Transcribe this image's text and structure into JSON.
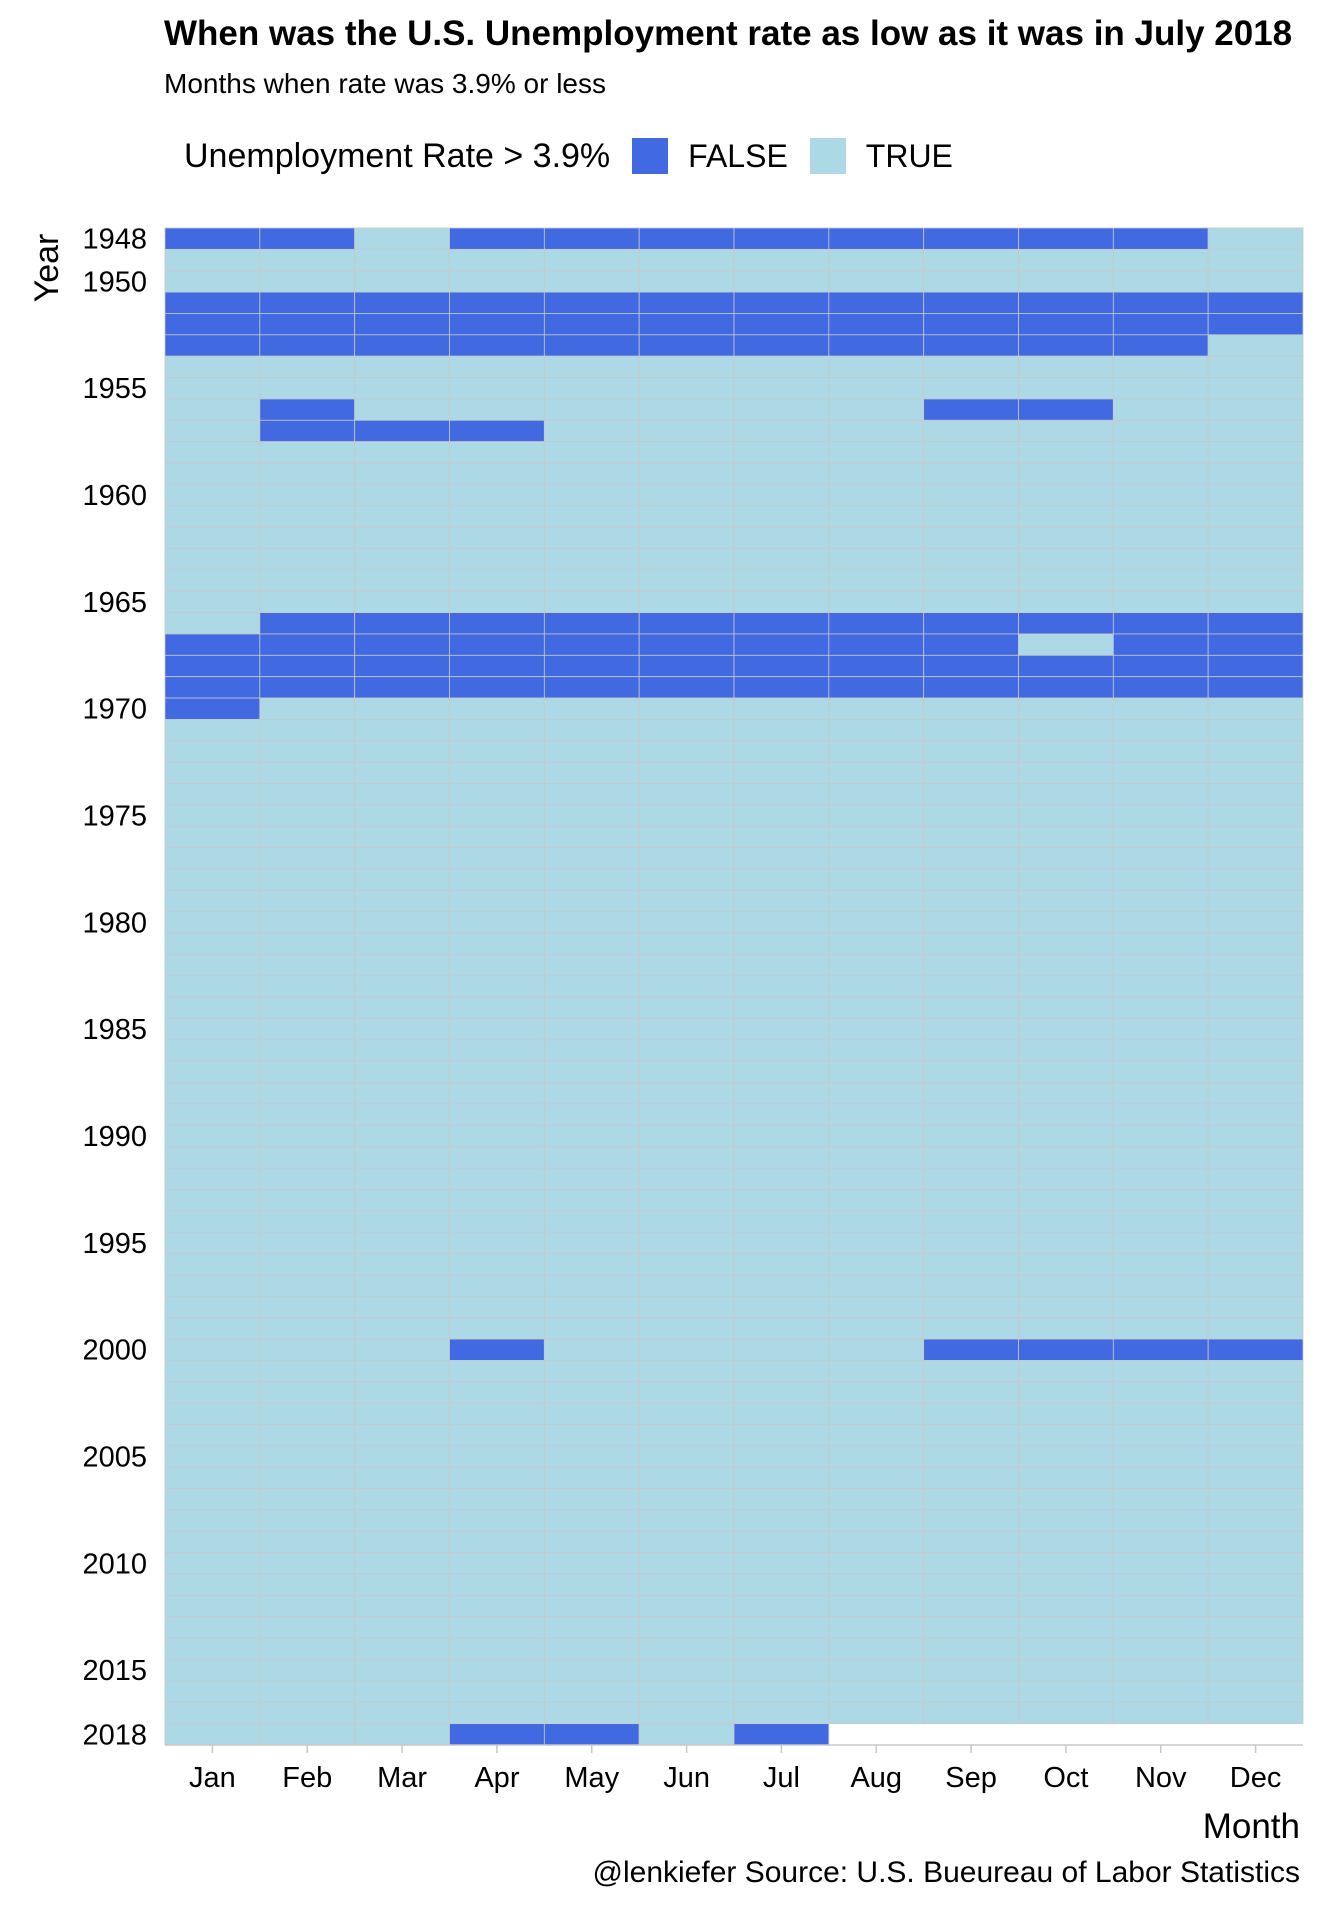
{
  "title": "When was the U.S. Unemployment rate as low as it was in July 2018",
  "subtitle": "Months when rate was 3.9% or less",
  "caption": "@lenkiefer Source: U.S. Bueureau of Labor Statistics",
  "legend": {
    "title": "Unemployment Rate > 3.9%",
    "items": [
      {
        "label": "FALSE",
        "color": "#4169E1"
      },
      {
        "label": "TRUE",
        "color": "#ADD8E6"
      }
    ]
  },
  "chart_data": {
    "type": "heatmap",
    "xlabel": "Month",
    "ylabel": "Year",
    "x_categories": [
      "Jan",
      "Feb",
      "Mar",
      "Apr",
      "May",
      "Jun",
      "Jul",
      "Aug",
      "Sep",
      "Oct",
      "Nov",
      "Dec"
    ],
    "y_range": [
      1948,
      2018
    ],
    "y_ticks": [
      1948,
      1950,
      1955,
      1960,
      1965,
      1970,
      1975,
      1980,
      1985,
      1990,
      1995,
      2000,
      2005,
      2010,
      2015,
      2018
    ],
    "last_month_2018": 7,
    "default_value": "TRUE",
    "false_cells": {
      "1948": [
        "Jan",
        "Feb",
        "Apr",
        "May",
        "Jun",
        "Jul",
        "Aug",
        "Sep",
        "Oct",
        "Nov"
      ],
      "1951": [
        "Jan",
        "Feb",
        "Mar",
        "Apr",
        "May",
        "Jun",
        "Jul",
        "Aug",
        "Sep",
        "Oct",
        "Nov",
        "Dec"
      ],
      "1952": [
        "Jan",
        "Feb",
        "Mar",
        "Apr",
        "May",
        "Jun",
        "Jul",
        "Aug",
        "Sep",
        "Oct",
        "Nov",
        "Dec"
      ],
      "1953": [
        "Jan",
        "Feb",
        "Mar",
        "Apr",
        "May",
        "Jun",
        "Jul",
        "Aug",
        "Sep",
        "Oct",
        "Nov"
      ],
      "1956": [
        "Feb",
        "Sep",
        "Oct"
      ],
      "1957": [
        "Feb",
        "Mar",
        "Apr"
      ],
      "1966": [
        "Feb",
        "Mar",
        "Apr",
        "May",
        "Jun",
        "Jul",
        "Aug",
        "Sep",
        "Oct",
        "Nov",
        "Dec"
      ],
      "1967": [
        "Jan",
        "Feb",
        "Mar",
        "Apr",
        "May",
        "Jun",
        "Jul",
        "Aug",
        "Sep",
        "Nov",
        "Dec"
      ],
      "1968": [
        "Jan",
        "Feb",
        "Mar",
        "Apr",
        "May",
        "Jun",
        "Jul",
        "Aug",
        "Sep",
        "Oct",
        "Nov",
        "Dec"
      ],
      "1969": [
        "Jan",
        "Feb",
        "Mar",
        "Apr",
        "May",
        "Jun",
        "Jul",
        "Aug",
        "Sep",
        "Oct",
        "Nov",
        "Dec"
      ],
      "1970": [
        "Jan"
      ],
      "2000": [
        "Apr",
        "Sep",
        "Oct",
        "Nov",
        "Dec"
      ],
      "2018": [
        "Apr",
        "May",
        "Jul"
      ]
    },
    "colors": {
      "FALSE": "#4169E1",
      "TRUE": "#ADD8E6",
      "grid": "#C8C8C8"
    }
  }
}
